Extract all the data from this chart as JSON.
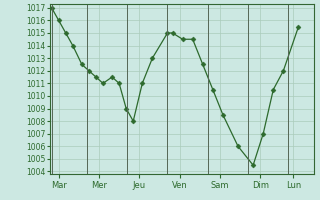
{
  "y_values": [
    1017,
    1016,
    1015,
    1014,
    1012.5,
    1012,
    1011.5,
    1011,
    1011.5,
    1011,
    1009,
    1008,
    1011,
    1013,
    1015,
    1015,
    1014.5,
    1014.5,
    1012.5,
    1010.5,
    1008.5,
    1006,
    1004.5,
    1007,
    1010.5,
    1012,
    1015.5
  ],
  "x_values": [
    0,
    0.7,
    1.4,
    2.1,
    3.0,
    3.7,
    4.4,
    5.1,
    6.0,
    6.7,
    7.4,
    8.1,
    9.0,
    10.0,
    11.5,
    12.0,
    13.0,
    14.0,
    15.0,
    16.0,
    17.0,
    18.5,
    20.0,
    21.0,
    22.0,
    23.0,
    24.5
  ],
  "day_labels": [
    "Mar",
    "Mer",
    "Jeu",
    "Ven",
    "Sam",
    "Dim",
    "Lun"
  ],
  "day_tick_pos": [
    0.7,
    4.7,
    8.7,
    12.7,
    16.7,
    20.7,
    24.0
  ],
  "ylim": [
    1003.8,
    1017.3
  ],
  "xlim": [
    -0.2,
    26.0
  ],
  "yticks": [
    1004,
    1005,
    1006,
    1007,
    1008,
    1009,
    1010,
    1011,
    1012,
    1013,
    1014,
    1015,
    1016,
    1017
  ],
  "line_color": "#2d6a2d",
  "bg_color": "#cce8e2",
  "grid_color": "#aaccbb",
  "spine_color": "#336633"
}
